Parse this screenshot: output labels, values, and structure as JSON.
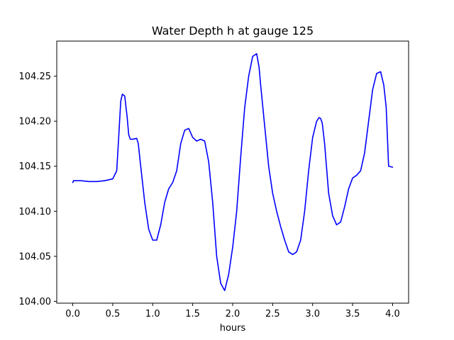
{
  "chart_data": {
    "type": "line",
    "title": "Water Depth h at gauge 125",
    "xlabel": "hours",
    "ylabel": "",
    "xlim": [
      -0.2,
      4.2
    ],
    "ylim": [
      103.998,
      104.289
    ],
    "xticks": [
      0.0,
      0.5,
      1.0,
      1.5,
      2.0,
      2.5,
      3.0,
      3.5,
      4.0
    ],
    "xtick_labels": [
      "0.0",
      "0.5",
      "1.0",
      "1.5",
      "2.0",
      "2.5",
      "3.0",
      "3.5",
      "4.0"
    ],
    "yticks": [
      104.0,
      104.05,
      104.1,
      104.15,
      104.2,
      104.25
    ],
    "ytick_labels": [
      "104.00",
      "104.05",
      "104.10",
      "104.15",
      "104.20",
      "104.25"
    ],
    "grid": false,
    "series": [
      {
        "color": "#0000ff",
        "x": [
          0.0,
          0.01,
          0.1,
          0.2,
          0.3,
          0.4,
          0.5,
          0.55,
          0.57,
          0.6,
          0.62,
          0.65,
          0.68,
          0.7,
          0.72,
          0.75,
          0.8,
          0.82,
          0.85,
          0.9,
          0.95,
          1.0,
          1.05,
          1.1,
          1.15,
          1.2,
          1.25,
          1.3,
          1.35,
          1.4,
          1.45,
          1.5,
          1.55,
          1.6,
          1.65,
          1.7,
          1.75,
          1.8,
          1.85,
          1.9,
          1.95,
          2.0,
          2.05,
          2.1,
          2.15,
          2.2,
          2.25,
          2.3,
          2.33,
          2.35,
          2.4,
          2.45,
          2.5,
          2.55,
          2.6,
          2.65,
          2.7,
          2.75,
          2.8,
          2.85,
          2.9,
          2.95,
          3.0,
          3.05,
          3.08,
          3.1,
          3.12,
          3.15,
          3.2,
          3.25,
          3.3,
          3.35,
          3.4,
          3.45,
          3.5,
          3.55,
          3.6,
          3.65,
          3.7,
          3.75,
          3.8,
          3.85,
          3.89,
          3.92,
          3.95,
          4.0
        ],
        "y": [
          104.132,
          104.134,
          104.134,
          104.133,
          104.133,
          104.134,
          104.136,
          104.145,
          104.175,
          104.222,
          104.23,
          104.228,
          104.205,
          104.185,
          104.18,
          104.18,
          104.181,
          104.175,
          104.15,
          104.11,
          104.08,
          104.068,
          104.068,
          104.085,
          104.11,
          104.125,
          104.132,
          104.145,
          104.175,
          104.19,
          104.192,
          104.182,
          104.178,
          104.18,
          104.178,
          104.155,
          104.11,
          104.05,
          104.02,
          104.012,
          104.03,
          104.06,
          104.1,
          104.16,
          104.215,
          104.25,
          104.272,
          104.275,
          104.26,
          104.24,
          104.195,
          104.15,
          104.12,
          104.1,
          104.083,
          104.068,
          104.055,
          104.052,
          104.055,
          104.068,
          104.1,
          104.145,
          104.182,
          104.2,
          104.204,
          104.203,
          104.198,
          104.175,
          104.12,
          104.095,
          104.085,
          104.088,
          104.105,
          104.125,
          104.137,
          104.14,
          104.145,
          104.165,
          104.2,
          104.235,
          104.253,
          104.255,
          104.24,
          104.215,
          104.15,
          104.149
        ]
      }
    ]
  }
}
